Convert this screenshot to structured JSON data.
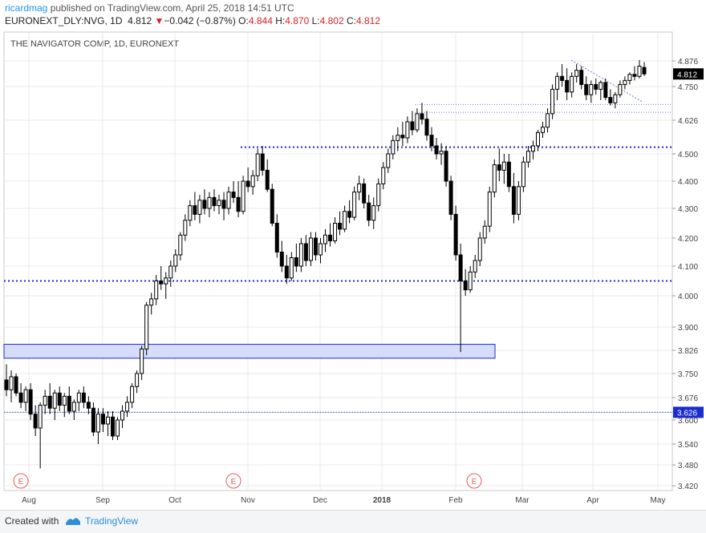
{
  "header": {
    "user": "ricardmag",
    "published": "published on TradingView.com, April 25, 2018 14:51 UTC",
    "symbol": "EURONEXT_DLY:NVG, 1D",
    "last": "4.812",
    "arrow": "▼",
    "change": "−0.042 (−0.87%)",
    "o_label": "O:",
    "o": "4.844",
    "h_label": "H:",
    "h": "4.870",
    "l_label": "L:",
    "l": "4.802",
    "c_label": "C:",
    "c": "4.812"
  },
  "chart_title": "THE NAVIGATOR COMP, 1D, EURONEXT",
  "footer": {
    "created_with": "Created with",
    "brand": "TradingView"
  },
  "colors": {
    "candle": "#000000",
    "level_line": "#1a2ccf",
    "zone_fill": "#d7dcfa",
    "price_tag": "#000000",
    "support_tag": "#1a2ccf",
    "event": "#e45c5c",
    "grid": "#e9e9ee"
  },
  "chart_data": {
    "type": "candlestick",
    "y_axis_ticks": [
      "4.876",
      "4.750",
      "4.626",
      "4.500",
      "4.400",
      "4.300",
      "4.200",
      "4.100",
      "4.000",
      "3.900",
      "3.826",
      "3.750",
      "3.676",
      "3.600",
      "3.540",
      "3.480",
      "3.420"
    ],
    "x_axis_ticks": [
      "Aug",
      "Sep",
      "Oct",
      "Nov",
      "Dec",
      "2018",
      "Feb",
      "Mar",
      "Apr",
      "May"
    ],
    "price_label": "4.812",
    "support_label": "3.626",
    "horizontal_levels": [
      4.525,
      4.05,
      3.626
    ],
    "zone": [
      3.8,
      3.845
    ],
    "resistance_thin": [
      4.684,
      4.655
    ],
    "event_marker": "E",
    "event_dates_approx": [
      "2017-07-28",
      "2017-10-31",
      "2018-02-06"
    ],
    "candles": [
      {
        "o": 3.73,
        "h": 3.78,
        "l": 3.68,
        "c": 3.7
      },
      {
        "o": 3.7,
        "h": 3.76,
        "l": 3.66,
        "c": 3.74
      },
      {
        "o": 3.74,
        "h": 3.75,
        "l": 3.68,
        "c": 3.69
      },
      {
        "o": 3.69,
        "h": 3.72,
        "l": 3.64,
        "c": 3.66
      },
      {
        "o": 3.66,
        "h": 3.71,
        "l": 3.63,
        "c": 3.7
      },
      {
        "o": 3.7,
        "h": 3.72,
        "l": 3.6,
        "c": 3.62
      },
      {
        "o": 3.62,
        "h": 3.65,
        "l": 3.56,
        "c": 3.58
      },
      {
        "o": 3.58,
        "h": 3.66,
        "l": 3.47,
        "c": 3.65
      },
      {
        "o": 3.65,
        "h": 3.7,
        "l": 3.62,
        "c": 3.68
      },
      {
        "o": 3.68,
        "h": 3.72,
        "l": 3.62,
        "c": 3.64
      },
      {
        "o": 3.64,
        "h": 3.7,
        "l": 3.6,
        "c": 3.69
      },
      {
        "o": 3.69,
        "h": 3.71,
        "l": 3.63,
        "c": 3.65
      },
      {
        "o": 3.65,
        "h": 3.69,
        "l": 3.61,
        "c": 3.68
      },
      {
        "o": 3.68,
        "h": 3.71,
        "l": 3.62,
        "c": 3.63
      },
      {
        "o": 3.63,
        "h": 3.67,
        "l": 3.6,
        "c": 3.66
      },
      {
        "o": 3.66,
        "h": 3.7,
        "l": 3.63,
        "c": 3.69
      },
      {
        "o": 3.69,
        "h": 3.71,
        "l": 3.64,
        "c": 3.66
      },
      {
        "o": 3.66,
        "h": 3.68,
        "l": 3.62,
        "c": 3.64
      },
      {
        "o": 3.64,
        "h": 3.66,
        "l": 3.56,
        "c": 3.57
      },
      {
        "o": 3.57,
        "h": 3.64,
        "l": 3.54,
        "c": 3.62
      },
      {
        "o": 3.62,
        "h": 3.64,
        "l": 3.57,
        "c": 3.59
      },
      {
        "o": 3.59,
        "h": 3.63,
        "l": 3.56,
        "c": 3.61
      },
      {
        "o": 3.61,
        "h": 3.63,
        "l": 3.55,
        "c": 3.56
      },
      {
        "o": 3.56,
        "h": 3.61,
        "l": 3.55,
        "c": 3.6
      },
      {
        "o": 3.6,
        "h": 3.65,
        "l": 3.58,
        "c": 3.63
      },
      {
        "o": 3.63,
        "h": 3.68,
        "l": 3.61,
        "c": 3.66
      },
      {
        "o": 3.66,
        "h": 3.72,
        "l": 3.64,
        "c": 3.71
      },
      {
        "o": 3.71,
        "h": 3.76,
        "l": 3.69,
        "c": 3.75
      },
      {
        "o": 3.75,
        "h": 3.84,
        "l": 3.73,
        "c": 3.83
      },
      {
        "o": 3.83,
        "h": 3.98,
        "l": 3.81,
        "c": 3.97
      },
      {
        "o": 3.97,
        "h": 4.01,
        "l": 3.94,
        "c": 3.99
      },
      {
        "o": 3.99,
        "h": 4.07,
        "l": 3.97,
        "c": 4.05
      },
      {
        "o": 4.05,
        "h": 4.1,
        "l": 4.02,
        "c": 4.04
      },
      {
        "o": 4.04,
        "h": 4.08,
        "l": 3.99,
        "c": 4.06
      },
      {
        "o": 4.06,
        "h": 4.12,
        "l": 4.03,
        "c": 4.1
      },
      {
        "o": 4.1,
        "h": 4.16,
        "l": 4.08,
        "c": 4.14
      },
      {
        "o": 4.14,
        "h": 4.22,
        "l": 4.12,
        "c": 4.21
      },
      {
        "o": 4.21,
        "h": 4.28,
        "l": 4.19,
        "c": 4.26
      },
      {
        "o": 4.26,
        "h": 4.33,
        "l": 4.24,
        "c": 4.31
      },
      {
        "o": 4.31,
        "h": 4.36,
        "l": 4.26,
        "c": 4.28
      },
      {
        "o": 4.28,
        "h": 4.35,
        "l": 4.25,
        "c": 4.33
      },
      {
        "o": 4.33,
        "h": 4.37,
        "l": 4.28,
        "c": 4.3
      },
      {
        "o": 4.3,
        "h": 4.36,
        "l": 4.27,
        "c": 4.34
      },
      {
        "o": 4.34,
        "h": 4.37,
        "l": 4.29,
        "c": 4.31
      },
      {
        "o": 4.31,
        "h": 4.35,
        "l": 4.28,
        "c": 4.33
      },
      {
        "o": 4.33,
        "h": 4.36,
        "l": 4.26,
        "c": 4.3
      },
      {
        "o": 4.3,
        "h": 4.38,
        "l": 4.28,
        "c": 4.36
      },
      {
        "o": 4.36,
        "h": 4.4,
        "l": 4.32,
        "c": 4.34
      },
      {
        "o": 4.34,
        "h": 4.4,
        "l": 4.27,
        "c": 4.29
      },
      {
        "o": 4.29,
        "h": 4.42,
        "l": 4.28,
        "c": 4.4
      },
      {
        "o": 4.4,
        "h": 4.45,
        "l": 4.36,
        "c": 4.38
      },
      {
        "o": 4.38,
        "h": 4.44,
        "l": 4.35,
        "c": 4.42
      },
      {
        "o": 4.42,
        "h": 4.52,
        "l": 4.4,
        "c": 4.5
      },
      {
        "o": 4.5,
        "h": 4.53,
        "l": 4.42,
        "c": 4.44
      },
      {
        "o": 4.44,
        "h": 4.48,
        "l": 4.36,
        "c": 4.37
      },
      {
        "o": 4.37,
        "h": 4.39,
        "l": 4.24,
        "c": 4.25
      },
      {
        "o": 4.25,
        "h": 4.28,
        "l": 4.13,
        "c": 4.15
      },
      {
        "o": 4.15,
        "h": 4.19,
        "l": 4.08,
        "c": 4.1
      },
      {
        "o": 4.1,
        "h": 4.14,
        "l": 4.04,
        "c": 4.06
      },
      {
        "o": 4.06,
        "h": 4.15,
        "l": 4.05,
        "c": 4.13
      },
      {
        "o": 4.13,
        "h": 4.18,
        "l": 4.08,
        "c": 4.1
      },
      {
        "o": 4.1,
        "h": 4.2,
        "l": 4.08,
        "c": 4.18
      },
      {
        "o": 4.18,
        "h": 4.21,
        "l": 4.1,
        "c": 4.12
      },
      {
        "o": 4.12,
        "h": 4.22,
        "l": 4.1,
        "c": 4.2
      },
      {
        "o": 4.2,
        "h": 4.22,
        "l": 4.12,
        "c": 4.14
      },
      {
        "o": 4.14,
        "h": 4.2,
        "l": 4.11,
        "c": 4.18
      },
      {
        "o": 4.18,
        "h": 4.23,
        "l": 4.15,
        "c": 4.21
      },
      {
        "o": 4.21,
        "h": 4.25,
        "l": 4.17,
        "c": 4.19
      },
      {
        "o": 4.19,
        "h": 4.27,
        "l": 4.18,
        "c": 4.25
      },
      {
        "o": 4.25,
        "h": 4.29,
        "l": 4.21,
        "c": 4.23
      },
      {
        "o": 4.23,
        "h": 4.31,
        "l": 4.22,
        "c": 4.29
      },
      {
        "o": 4.29,
        "h": 4.33,
        "l": 4.25,
        "c": 4.27
      },
      {
        "o": 4.27,
        "h": 4.38,
        "l": 4.26,
        "c": 4.36
      },
      {
        "o": 4.36,
        "h": 4.42,
        "l": 4.33,
        "c": 4.39
      },
      {
        "o": 4.39,
        "h": 4.41,
        "l": 4.3,
        "c": 4.32
      },
      {
        "o": 4.32,
        "h": 4.35,
        "l": 4.24,
        "c": 4.26
      },
      {
        "o": 4.26,
        "h": 4.34,
        "l": 4.23,
        "c": 4.31
      },
      {
        "o": 4.31,
        "h": 4.41,
        "l": 4.29,
        "c": 4.39
      },
      {
        "o": 4.39,
        "h": 4.47,
        "l": 4.37,
        "c": 4.45
      },
      {
        "o": 4.45,
        "h": 4.52,
        "l": 4.43,
        "c": 4.5
      },
      {
        "o": 4.5,
        "h": 4.57,
        "l": 4.48,
        "c": 4.55
      },
      {
        "o": 4.55,
        "h": 4.6,
        "l": 4.51,
        "c": 4.57
      },
      {
        "o": 4.57,
        "h": 4.62,
        "l": 4.53,
        "c": 4.56
      },
      {
        "o": 4.56,
        "h": 4.64,
        "l": 4.54,
        "c": 4.62
      },
      {
        "o": 4.62,
        "h": 4.66,
        "l": 4.57,
        "c": 4.59
      },
      {
        "o": 4.59,
        "h": 4.67,
        "l": 4.58,
        "c": 4.65
      },
      {
        "o": 4.65,
        "h": 4.69,
        "l": 4.61,
        "c": 4.63
      },
      {
        "o": 4.63,
        "h": 4.66,
        "l": 4.55,
        "c": 4.57
      },
      {
        "o": 4.57,
        "h": 4.6,
        "l": 4.51,
        "c": 4.53
      },
      {
        "o": 4.53,
        "h": 4.56,
        "l": 4.48,
        "c": 4.5
      },
      {
        "o": 4.5,
        "h": 4.54,
        "l": 4.46,
        "c": 4.51
      },
      {
        "o": 4.51,
        "h": 4.53,
        "l": 4.38,
        "c": 4.4
      },
      {
        "o": 4.4,
        "h": 4.42,
        "l": 4.26,
        "c": 4.28
      },
      {
        "o": 4.28,
        "h": 4.31,
        "l": 4.12,
        "c": 4.14
      },
      {
        "o": 4.14,
        "h": 4.18,
        "l": 3.82,
        "c": 4.05
      },
      {
        "o": 4.05,
        "h": 4.09,
        "l": 4.0,
        "c": 4.02
      },
      {
        "o": 4.02,
        "h": 4.1,
        "l": 4.01,
        "c": 4.08
      },
      {
        "o": 4.08,
        "h": 4.14,
        "l": 4.06,
        "c": 4.12
      },
      {
        "o": 4.12,
        "h": 4.22,
        "l": 4.1,
        "c": 4.2
      },
      {
        "o": 4.2,
        "h": 4.26,
        "l": 4.18,
        "c": 4.24
      },
      {
        "o": 4.24,
        "h": 4.38,
        "l": 4.22,
        "c": 4.36
      },
      {
        "o": 4.36,
        "h": 4.48,
        "l": 4.34,
        "c": 4.46
      },
      {
        "o": 4.46,
        "h": 4.52,
        "l": 4.4,
        "c": 4.44
      },
      {
        "o": 4.44,
        "h": 4.5,
        "l": 4.39,
        "c": 4.47
      },
      {
        "o": 4.47,
        "h": 4.5,
        "l": 4.36,
        "c": 4.38
      },
      {
        "o": 4.38,
        "h": 4.43,
        "l": 4.25,
        "c": 4.28
      },
      {
        "o": 4.28,
        "h": 4.4,
        "l": 4.26,
        "c": 4.38
      },
      {
        "o": 4.38,
        "h": 4.49,
        "l": 4.36,
        "c": 4.47
      },
      {
        "o": 4.47,
        "h": 4.53,
        "l": 4.45,
        "c": 4.51
      },
      {
        "o": 4.51,
        "h": 4.55,
        "l": 4.48,
        "c": 4.53
      },
      {
        "o": 4.53,
        "h": 4.59,
        "l": 4.51,
        "c": 4.58
      },
      {
        "o": 4.58,
        "h": 4.62,
        "l": 4.56,
        "c": 4.6
      },
      {
        "o": 4.6,
        "h": 4.67,
        "l": 4.58,
        "c": 4.65
      },
      {
        "o": 4.65,
        "h": 4.76,
        "l": 4.63,
        "c": 4.74
      },
      {
        "o": 4.74,
        "h": 4.82,
        "l": 4.7,
        "c": 4.8
      },
      {
        "o": 4.8,
        "h": 4.86,
        "l": 4.75,
        "c": 4.78
      },
      {
        "o": 4.78,
        "h": 4.84,
        "l": 4.7,
        "c": 4.73
      },
      {
        "o": 4.73,
        "h": 4.82,
        "l": 4.71,
        "c": 4.8
      },
      {
        "o": 4.8,
        "h": 4.86,
        "l": 4.77,
        "c": 4.83
      },
      {
        "o": 4.83,
        "h": 4.85,
        "l": 4.74,
        "c": 4.76
      },
      {
        "o": 4.76,
        "h": 4.8,
        "l": 4.7,
        "c": 4.72
      },
      {
        "o": 4.72,
        "h": 4.78,
        "l": 4.69,
        "c": 4.76
      },
      {
        "o": 4.76,
        "h": 4.79,
        "l": 4.72,
        "c": 4.74
      },
      {
        "o": 4.74,
        "h": 4.78,
        "l": 4.7,
        "c": 4.77
      },
      {
        "o": 4.77,
        "h": 4.79,
        "l": 4.7,
        "c": 4.71
      },
      {
        "o": 4.71,
        "h": 4.74,
        "l": 4.68,
        "c": 4.69
      },
      {
        "o": 4.69,
        "h": 4.73,
        "l": 4.67,
        "c": 4.72
      },
      {
        "o": 4.72,
        "h": 4.78,
        "l": 4.71,
        "c": 4.76
      },
      {
        "o": 4.76,
        "h": 4.8,
        "l": 4.74,
        "c": 4.78
      },
      {
        "o": 4.78,
        "h": 4.82,
        "l": 4.76,
        "c": 4.81
      },
      {
        "o": 4.81,
        "h": 4.85,
        "l": 4.78,
        "c": 4.8
      },
      {
        "o": 4.8,
        "h": 4.88,
        "l": 4.79,
        "c": 4.85
      },
      {
        "o": 4.844,
        "h": 4.87,
        "l": 4.802,
        "c": 4.812
      }
    ]
  }
}
